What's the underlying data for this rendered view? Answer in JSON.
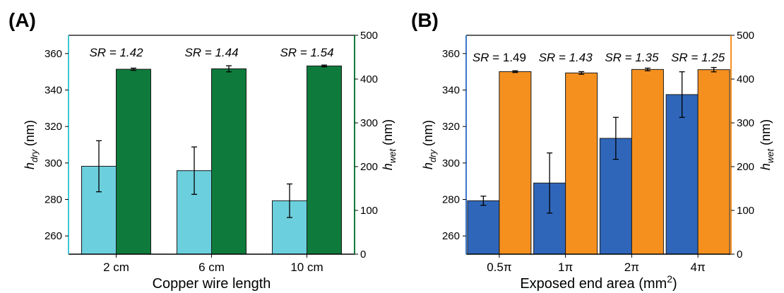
{
  "chart_data": [
    {
      "type": "bar",
      "panel_label": "(A)",
      "categories": [
        "2 cm",
        "6 cm",
        "10 cm"
      ],
      "xlabel": "Copper wire length",
      "ylabel_left": {
        "main": "h",
        "sub": "dry",
        "unit": "(nm)"
      },
      "ylabel_right": {
        "main": "h",
        "sub": "wet",
        "unit": "(nm)"
      },
      "ylim_left": [
        250,
        370
      ],
      "yticks_left": [
        260,
        280,
        300,
        320,
        340,
        360
      ],
      "ylim_right": [
        0,
        500
      ],
      "yticks_right": [
        0,
        100,
        200,
        300,
        400,
        500
      ],
      "series": [
        {
          "axis": "left",
          "color": "#6ccfde",
          "values": [
            298.2,
            295.8,
            279.3
          ],
          "errors": [
            14.0,
            13.0,
            9.2
          ]
        },
        {
          "axis": "right",
          "color": "#0e7b3c",
          "values": [
            422.5,
            423.5,
            430.0
          ],
          "errors": [
            2.5,
            7.0,
            2.0
          ]
        }
      ],
      "annotations": [
        {
          "prefix": "SR",
          "value": "= 1.42"
        },
        {
          "prefix": "SR",
          "value": "= 1.44"
        },
        {
          "prefix": "SR",
          "value": "= 1.54"
        }
      ],
      "axis_colors": {
        "left": "#3ec9d6",
        "right": "#0e7b3c"
      }
    },
    {
      "type": "bar",
      "panel_label": "(B)",
      "categories": [
        "0.5π",
        "1π",
        "2π",
        "4π"
      ],
      "xlabel": "Exposed end area (mm",
      "xlabel_sup": "2",
      "xlabel_end": ")",
      "ylabel_left": {
        "main": "h",
        "sub": "dry",
        "unit": "(nm)"
      },
      "ylabel_right": {
        "main": "h",
        "sub": "wet",
        "unit": "(nm)"
      },
      "ylim_left": [
        250,
        370
      ],
      "yticks_left": [
        260,
        280,
        300,
        320,
        340,
        360
      ],
      "ylim_right": [
        0,
        500
      ],
      "yticks_right": [
        0,
        100,
        200,
        300,
        400,
        500
      ],
      "series": [
        {
          "axis": "left",
          "color": "#2f66b9",
          "values": [
            279.3,
            289.0,
            313.5,
            337.5
          ],
          "errors": [
            2.5,
            16.5,
            11.5,
            12.5
          ]
        },
        {
          "axis": "right",
          "color": "#f5901f",
          "values": [
            417.0,
            414.0,
            422.0,
            421.5
          ],
          "errors": [
            2.0,
            3.0,
            3.0,
            5.0
          ]
        }
      ],
      "annotations": [
        {
          "prefix": "SR",
          "value": " = 1.49"
        },
        {
          "prefix": "SR",
          "value": "= 1.43"
        },
        {
          "prefix": "SR",
          "value": "= 1.35"
        },
        {
          "prefix": "SR",
          "value": "= 1.25"
        }
      ],
      "axis_colors": {
        "left": "#3d79c9",
        "right": "#f5901f"
      }
    }
  ]
}
